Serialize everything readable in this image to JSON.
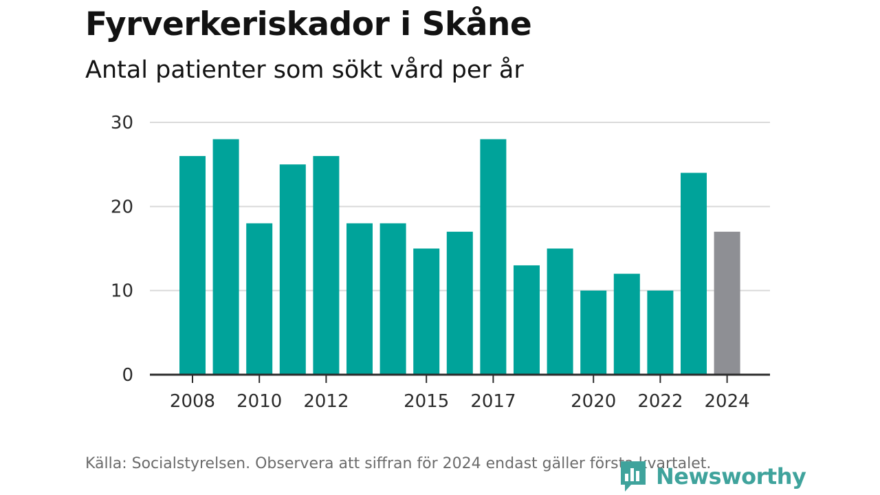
{
  "header": {
    "title": "Fyrverkeriskador i Skåne",
    "subtitle": "Antal patienter som sökt vård per år"
  },
  "footer": {
    "source": "Källa: Socialstyrelsen. Observera att siffran för 2024 endast gäller första kvartalet."
  },
  "brand": {
    "name": "Newsworthy",
    "color": "#3fa39c",
    "logo_icon": "bar-chart-speech-bubble-icon"
  },
  "colors": {
    "bar": "#00a39a",
    "bar_partial": "#8e8f94",
    "grid": "#d9d9d9",
    "axis": "#2b2b2b"
  },
  "chart_data": {
    "type": "bar",
    "categories": [
      "2008",
      "2009",
      "2010",
      "2011",
      "2012",
      "2013",
      "2014",
      "2015",
      "2016",
      "2017",
      "2018",
      "2019",
      "2020",
      "2021",
      "2022",
      "2023",
      "2024"
    ],
    "values": [
      26,
      28,
      18,
      25,
      26,
      18,
      18,
      15,
      17,
      28,
      13,
      15,
      10,
      12,
      10,
      24,
      17
    ],
    "x_tick_labels": [
      "2008",
      "2010",
      "2012",
      "2015",
      "2017",
      "2020",
      "2022",
      "2024"
    ],
    "y_ticks": [
      0,
      10,
      20,
      30
    ],
    "ylim": [
      0,
      30
    ],
    "grid": true,
    "partial_year": "2024"
  }
}
